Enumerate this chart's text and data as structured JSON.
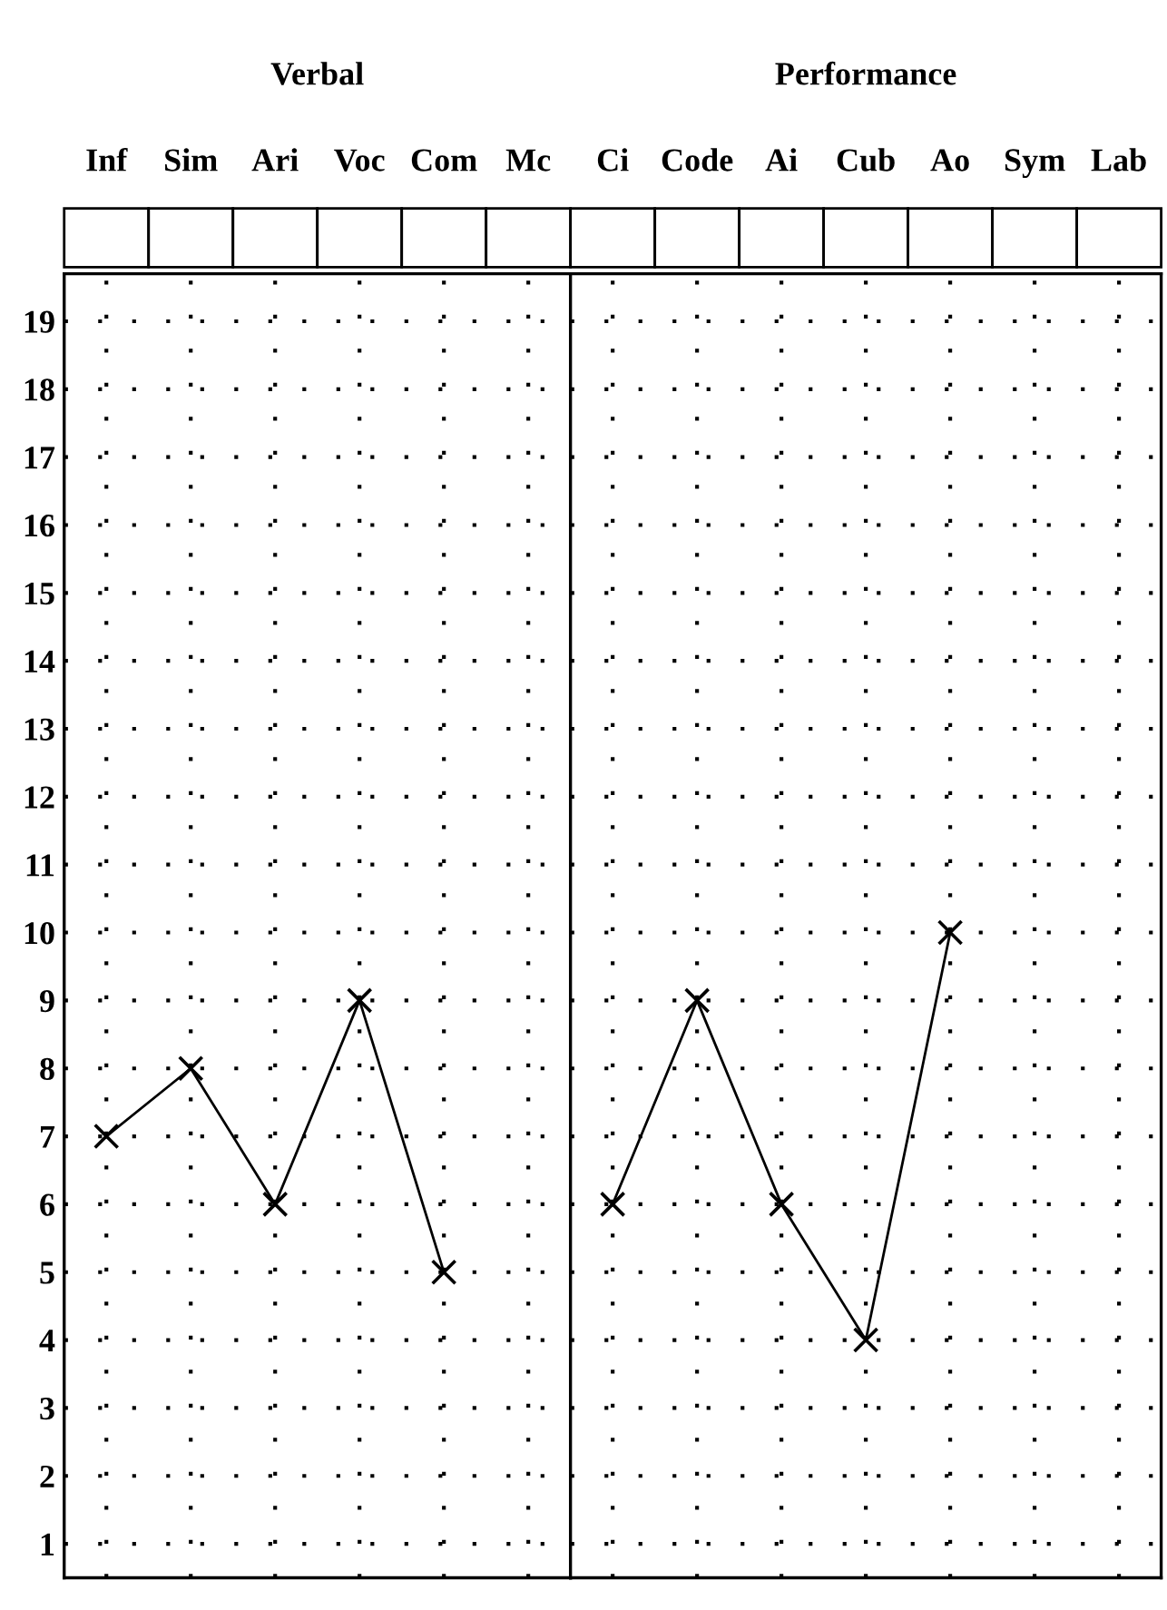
{
  "chart_data": [
    {
      "type": "line",
      "title": "Verbal",
      "categories": [
        "Inf",
        "Sim",
        "Ari",
        "Voc",
        "Com",
        "Mc"
      ],
      "series": [
        {
          "color": "#000000",
          "values": [
            7,
            8,
            6,
            9,
            5,
            null
          ]
        }
      ],
      "ylim": [
        0.5,
        19.7
      ],
      "yticks": [
        1,
        2,
        3,
        4,
        5,
        6,
        7,
        8,
        9,
        10,
        11,
        12,
        13,
        14,
        15,
        16,
        17,
        18,
        19
      ],
      "grid": true,
      "marker": "cross",
      "line_style": "solid"
    },
    {
      "type": "line",
      "title": "Performance",
      "categories": [
        "Ci",
        "Code",
        "Ai",
        "Cub",
        "Ao",
        "Sym",
        "Lab"
      ],
      "series": [
        {
          "color": "#000000",
          "values": [
            6,
            9,
            6,
            4,
            10,
            null,
            null
          ]
        }
      ],
      "ylim": [
        0.5,
        19.7
      ],
      "yticks": [
        1,
        2,
        3,
        4,
        5,
        6,
        7,
        8,
        9,
        10,
        11,
        12,
        13,
        14,
        15,
        16,
        17,
        18,
        19
      ],
      "grid": true,
      "marker": "cross",
      "line_style": "solid",
      "tick_labels": "x"
    }
  ]
}
